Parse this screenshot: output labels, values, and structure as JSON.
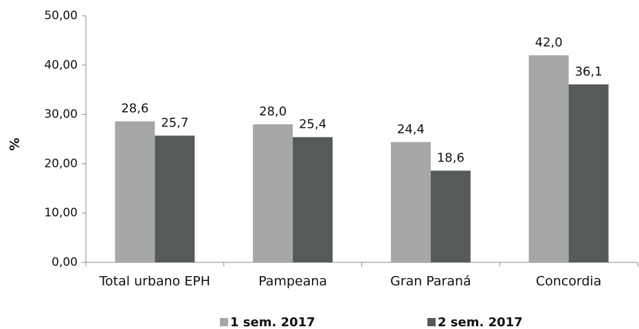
{
  "chart_data": {
    "type": "bar",
    "ylabel": "%",
    "categories": [
      "Total urbano EPH",
      "Pampeana",
      "Gran Paraná",
      "Concordia"
    ],
    "series": [
      {
        "name": "1 sem. 2017",
        "color": "#a6a8a8",
        "values": [
          28.6,
          28.0,
          24.4,
          42.0
        ],
        "value_labels": [
          "28,6",
          "28,0",
          "24,4",
          "42,0"
        ]
      },
      {
        "name": "2 sem. 2017",
        "color": "#575a5b",
        "values": [
          25.7,
          25.4,
          18.6,
          36.1
        ],
        "value_labels": [
          "25,7",
          "25,4",
          "18,6",
          "36,1"
        ]
      }
    ],
    "ylim": [
      0,
      50
    ],
    "yticks": [
      {
        "value": 0,
        "label": "0,00"
      },
      {
        "value": 10,
        "label": "10,00"
      },
      {
        "value": 20,
        "label": "20,00"
      },
      {
        "value": 30,
        "label": "30,00"
      },
      {
        "value": 40,
        "label": "40,00"
      },
      {
        "value": 50,
        "label": "50,00"
      }
    ],
    "grid": false,
    "legend": "bottom"
  }
}
